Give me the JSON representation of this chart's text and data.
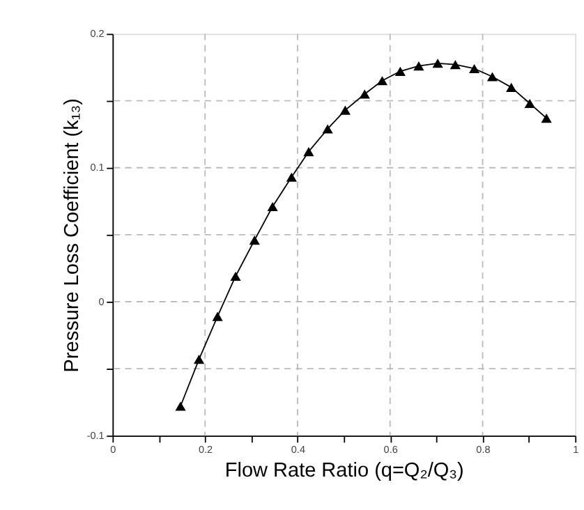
{
  "chart_data": {
    "type": "line",
    "xlabel": "Flow Rate Ratio (q=Q₂/Q₃)",
    "ylabel": "Pressure Loss Coefficient (k₁₃)",
    "x": [
      0.147,
      0.187,
      0.227,
      0.266,
      0.307,
      0.346,
      0.387,
      0.424,
      0.465,
      0.503,
      0.545,
      0.583,
      0.622,
      0.662,
      0.703,
      0.741,
      0.782,
      0.821,
      0.862,
      0.902,
      0.938
    ],
    "series": [
      {
        "color": "#000000",
        "values": [
          -0.078,
          -0.043,
          -0.011,
          0.019,
          0.046,
          0.071,
          0.093,
          0.112,
          0.129,
          0.143,
          0.155,
          0.165,
          0.172,
          0.176,
          0.178,
          0.177,
          0.174,
          0.168,
          0.16,
          0.148,
          0.137
        ]
      }
    ],
    "xlim": [
      0,
      1
    ],
    "ylim": [
      -0.1,
      0.2
    ],
    "xticks": [
      0,
      {
        "value": 0.1,
        "label": null
      },
      0.2,
      {
        "value": 0.3,
        "label": null
      },
      0.4,
      {
        "value": 0.5,
        "label": null
      },
      0.6,
      {
        "value": 0.7,
        "label": null
      },
      0.8,
      {
        "value": 0.9,
        "label": null
      },
      1
    ],
    "yticks": [
      -0.1,
      {
        "value": -0.05,
        "label": null
      },
      0,
      {
        "value": 0.05,
        "label": null
      },
      0.1,
      {
        "value": 0.15,
        "label": null
      },
      0.2
    ],
    "grid": true,
    "marker": "triangle",
    "line_style": "solid"
  }
}
